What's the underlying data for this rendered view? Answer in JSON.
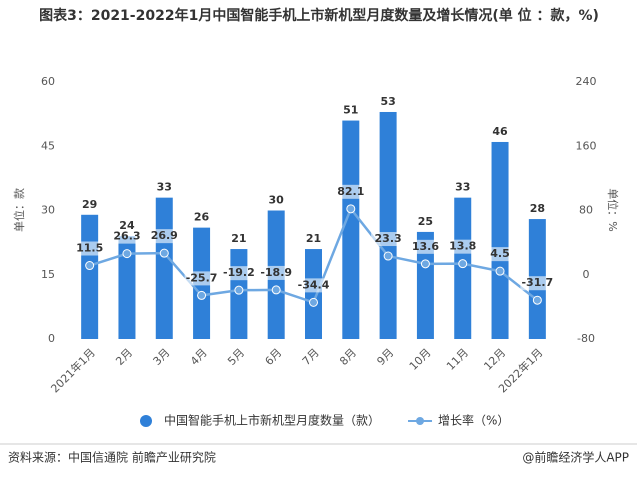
{
  "chart_data": {
    "type": "bar_line",
    "title": "图表3：2021-2022年1月中国智能手机上市新机型月度数量及增长情况(单 位 ：款，%)",
    "ylabel": "单位：款",
    "y2label": "单位：%",
    "categories": [
      "2021年1月",
      "2月",
      "3月",
      "4月",
      "5月",
      "6月",
      "7月",
      "8月",
      "9月",
      "10月",
      "11月",
      "12月",
      "2022年1月"
    ],
    "series": [
      {
        "name": "中国智能手机上市新机型月度数量（款）",
        "color": "#2f80d8",
        "type": "bar",
        "values": [
          29,
          24,
          33,
          26,
          21,
          30,
          21,
          51,
          53,
          25,
          33,
          46,
          28
        ]
      },
      {
        "name": "增长率（%）",
        "color": "#6ea8e2",
        "type": "line",
        "axis": "y2",
        "values": [
          11.5,
          26.3,
          26.9,
          -25.7,
          -19.2,
          -18.9,
          -34.4,
          82.1,
          23.3,
          13.6,
          13.8,
          4.5,
          -31.7
        ]
      }
    ],
    "ylim": [
      0,
      60
    ],
    "yticks": [
      0,
      15,
      30,
      45,
      60
    ],
    "y2lim": [
      -80,
      240
    ],
    "y2ticks": [
      -80,
      0,
      80,
      160,
      240
    ],
    "grid": false,
    "source": "资料来源：中国信通院 前瞻产业研究院",
    "credit": "@前瞻经济学人APP"
  }
}
